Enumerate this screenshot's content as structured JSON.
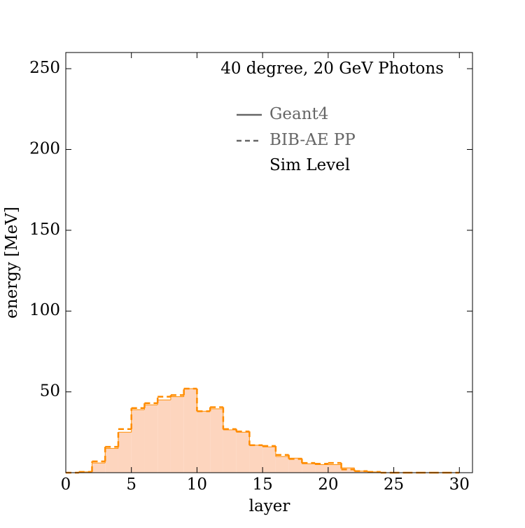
{
  "chart_data": {
    "type": "histogram",
    "annotation": "40 degree, 20 GeV Photons",
    "legend_note": "Sim Level",
    "x_label": "layer",
    "y_label": "energy [MeV]",
    "bins": [
      0,
      1,
      2,
      3,
      4,
      5,
      6,
      7,
      8,
      9,
      10,
      11,
      12,
      13,
      14,
      15,
      16,
      17,
      18,
      19,
      20,
      21,
      22,
      23,
      24,
      25,
      26,
      27,
      28,
      29,
      30
    ],
    "series": [
      {
        "name": "Geant4",
        "color": "#ff8c00",
        "fill": "#fdd5be",
        "linestyle": "solid",
        "values": [
          0,
          0.5,
          6,
          15,
          25,
          39,
          42,
          45,
          47,
          52,
          38,
          39.5,
          26.5,
          25,
          17,
          16,
          10,
          9,
          5.5,
          5,
          5,
          3,
          1,
          0.5,
          0,
          0,
          0,
          0,
          0,
          0
        ]
      },
      {
        "name": "BIB-AE PP",
        "color": "#ff8c00",
        "linestyle": "dashed",
        "values": [
          0,
          0.5,
          7,
          16,
          27,
          40,
          43,
          47,
          48,
          52,
          38,
          40.5,
          27,
          25.5,
          17,
          16.5,
          11,
          8.5,
          6,
          5.5,
          6,
          2,
          1,
          0.5,
          0,
          0,
          0,
          0,
          0,
          0
        ]
      }
    ],
    "xlim": [
      0,
      31
    ],
    "ylim": [
      0,
      260
    ],
    "xticks": [
      0,
      5,
      10,
      15,
      20,
      25,
      30
    ],
    "yticks": [
      50,
      100,
      150,
      200,
      250
    ]
  }
}
